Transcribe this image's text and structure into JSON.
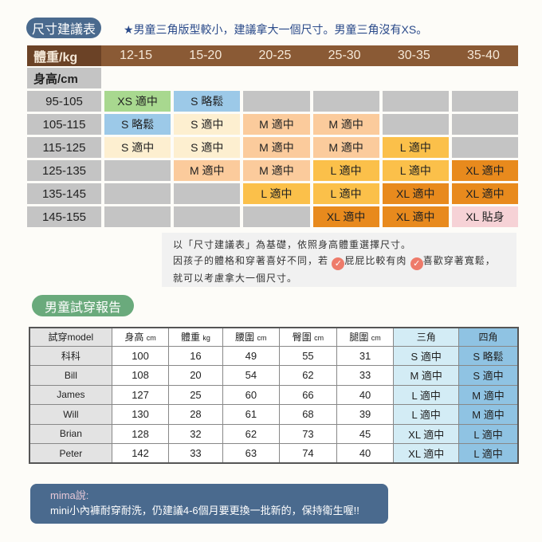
{
  "size_guide": {
    "title": "尺寸建議表",
    "note": "★男童三角版型較小，建議拿大一個尺寸。男童三角沒有XS。",
    "weight_label": "體重/kg",
    "height_label": "身高/cm",
    "weights": [
      "12-15",
      "15-20",
      "20-25",
      "25-30",
      "30-35",
      "35-40"
    ],
    "rows": [
      {
        "height": "95-105",
        "cells": [
          {
            "t": "XS 適中",
            "c": "green"
          },
          {
            "t": "S 略鬆",
            "c": "blue"
          },
          {
            "t": "",
            "c": "gray"
          },
          {
            "t": "",
            "c": "gray"
          },
          {
            "t": "",
            "c": "gray"
          },
          {
            "t": "",
            "c": "gray"
          }
        ]
      },
      {
        "height": "105-115",
        "cells": [
          {
            "t": "S 略鬆",
            "c": "blue"
          },
          {
            "t": "S 適中",
            "c": "cream"
          },
          {
            "t": "M 適中",
            "c": "peach"
          },
          {
            "t": "M 適中",
            "c": "peach"
          },
          {
            "t": "",
            "c": "gray"
          },
          {
            "t": "",
            "c": "gray"
          }
        ]
      },
      {
        "height": "115-125",
        "cells": [
          {
            "t": "S 適中",
            "c": "cream"
          },
          {
            "t": "S 適中",
            "c": "cream"
          },
          {
            "t": "M 適中",
            "c": "peach"
          },
          {
            "t": "M 適中",
            "c": "peach"
          },
          {
            "t": "L 適中",
            "c": "yellow"
          },
          {
            "t": "",
            "c": "gray"
          }
        ]
      },
      {
        "height": "125-135",
        "cells": [
          {
            "t": "",
            "c": "gray"
          },
          {
            "t": "M 適中",
            "c": "peach"
          },
          {
            "t": "M 適中",
            "c": "peach"
          },
          {
            "t": "L 適中",
            "c": "yellow"
          },
          {
            "t": "L 適中",
            "c": "yellow"
          },
          {
            "t": "XL 適中",
            "c": "orange"
          }
        ]
      },
      {
        "height": "135-145",
        "cells": [
          {
            "t": "",
            "c": "gray"
          },
          {
            "t": "",
            "c": "gray"
          },
          {
            "t": "L 適中",
            "c": "yellow"
          },
          {
            "t": "L 適中",
            "c": "yellow"
          },
          {
            "t": "XL 適中",
            "c": "orange"
          },
          {
            "t": "XL 適中",
            "c": "orange"
          }
        ]
      },
      {
        "height": "145-155",
        "cells": [
          {
            "t": "",
            "c": "gray"
          },
          {
            "t": "",
            "c": "gray"
          },
          {
            "t": "",
            "c": "gray"
          },
          {
            "t": "XL 適中",
            "c": "orange"
          },
          {
            "t": "XL 適中",
            "c": "orange"
          },
          {
            "t": "XL 貼身",
            "c": "pink"
          }
        ]
      }
    ],
    "colors": {
      "green": "#a8d88f",
      "blue": "#9cc9e8",
      "cream": "#fdefd0",
      "peach": "#fbcb9c",
      "yellow": "#fbc04a",
      "orange": "#e88a1d",
      "pink": "#f6d2d6",
      "gray": "#c4c4c4"
    },
    "advice": {
      "line1": "以「尺寸建議表」為基礎，依照身高體重選擇尺寸。",
      "line2_a": "因孩子的體格和穿著喜好不同，若",
      "line2_b": "屁屁比較有肉",
      "line2_c": "喜歡穿著寬鬆，",
      "line3": "就可以考慮拿大一個尺寸。",
      "check_icon": "✓"
    }
  },
  "report": {
    "title": "男童試穿報告",
    "headers": [
      {
        "t": "試穿model",
        "u": ""
      },
      {
        "t": "身高",
        "u": "cm"
      },
      {
        "t": "體重",
        "u": "kg"
      },
      {
        "t": "腰圍",
        "u": "cm"
      },
      {
        "t": "臀圍",
        "u": "cm"
      },
      {
        "t": "腿圍",
        "u": "cm"
      },
      {
        "t": "三角",
        "u": ""
      },
      {
        "t": "四角",
        "u": ""
      }
    ],
    "rows": [
      [
        "科科",
        "100",
        "16",
        "49",
        "55",
        "31",
        "S 適中",
        "S 略鬆"
      ],
      [
        "Bill",
        "108",
        "20",
        "54",
        "62",
        "33",
        "M 適中",
        "S 適中"
      ],
      [
        "James",
        "127",
        "25",
        "60",
        "66",
        "40",
        "L 適中",
        "M 適中"
      ],
      [
        "Will",
        "130",
        "28",
        "61",
        "68",
        "39",
        "L 適中",
        "M 適中"
      ],
      [
        "Brian",
        "128",
        "32",
        "62",
        "73",
        "45",
        "XL 適中",
        "L 適中"
      ],
      [
        "Peter",
        "142",
        "33",
        "63",
        "74",
        "40",
        "XL 適中",
        "L 適中"
      ]
    ]
  },
  "mima": {
    "who": "mima說:",
    "text": "mini小內褲耐穿耐洗，仍建議4-6個月要更換一批新的，保持衛生喔!!"
  }
}
